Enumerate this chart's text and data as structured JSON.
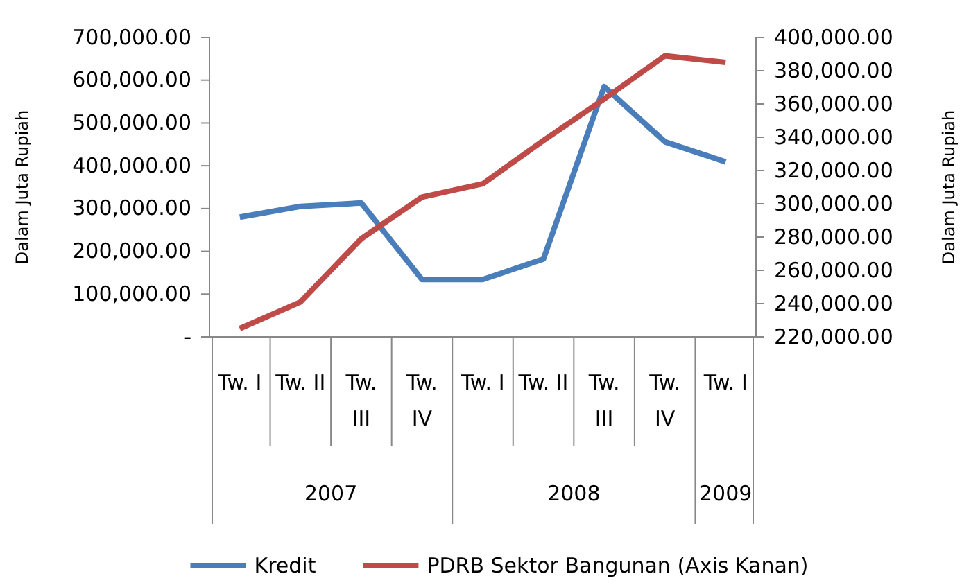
{
  "chart_data": {
    "type": "line",
    "ylabel": "Dalam Juta Rupiah",
    "y2label": "Dalam Juta Rupiah",
    "categories": [
      "Tw. I",
      "Tw. II",
      "Tw. III",
      "Tw. IV",
      "Tw. I",
      "Tw. II",
      "Tw. III",
      "Tw. IV",
      "Tw. I"
    ],
    "annotations": [
      "2007",
      "2008",
      "2009"
    ],
    "series": [
      {
        "name": "Kredit",
        "color": "#4a7ebb",
        "values": [
          280000,
          305000,
          313000,
          134000,
          134000,
          182000,
          585000,
          456000,
          409000
        ]
      },
      {
        "name": "PDRB Sektor Bangunan (Axis Kanan)",
        "color": "#be4b48",
        "axis": "y2",
        "values": [
          225000,
          241000,
          279000,
          304000,
          312000,
          338000,
          363000,
          389000,
          385000
        ]
      }
    ],
    "ylim": [
      0,
      700000
    ],
    "yticks": [
      {
        "value": 0,
        "label": "-"
      },
      {
        "value": 100000,
        "label": "100,000.00"
      },
      {
        "value": 200000,
        "label": "200,000.00"
      },
      {
        "value": 300000,
        "label": "300,000.00"
      },
      {
        "value": 400000,
        "label": "400,000.00"
      },
      {
        "value": 500000,
        "label": "500,000.00"
      },
      {
        "value": 600000,
        "label": "600,000.00"
      },
      {
        "value": 700000,
        "label": "700,000.00"
      }
    ],
    "y2lim": [
      220000,
      400000
    ],
    "y2ticks": [
      {
        "value": 220000,
        "label": "220,000.00"
      },
      {
        "value": 240000,
        "label": "240,000.00"
      },
      {
        "value": 260000,
        "label": "260,000.00"
      },
      {
        "value": 280000,
        "label": "280,000.00"
      },
      {
        "value": 300000,
        "label": "300,000.00"
      },
      {
        "value": 320000,
        "label": "320,000.00"
      },
      {
        "value": 340000,
        "label": "340,000.00"
      },
      {
        "value": 360000,
        "label": "360,000.00"
      },
      {
        "value": 380000,
        "label": "380,000.00"
      },
      {
        "value": 400000,
        "label": "400,000.00"
      }
    ],
    "legend": "bottom",
    "grid": false,
    "marker": "none",
    "line_style": "solid"
  }
}
